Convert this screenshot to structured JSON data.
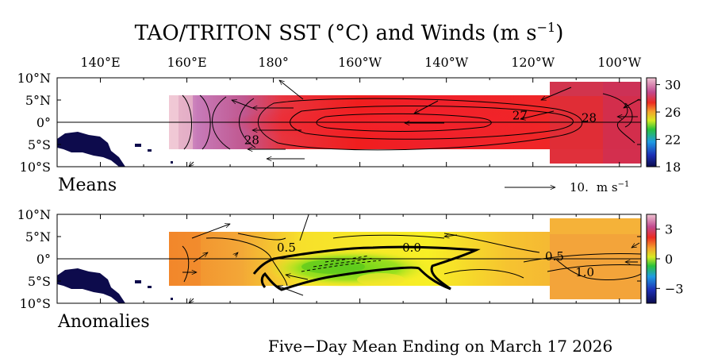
{
  "chart_data": {
    "type": "heatmap",
    "title": "TAO/TRITON SST (°C) and Winds (m s",
    "title_sup": "−1",
    "title_end": ")",
    "footer": "Five−Day Mean Ending on March 17 2026",
    "lon_ticks": [
      "140°E",
      "160°E",
      "180°",
      "160°W",
      "140°W",
      "120°W",
      "100°W"
    ],
    "lat_ticks": [
      "10°N",
      "5°N",
      "0°",
      "5°S",
      "10°S"
    ],
    "lon_range": [
      130,
      265
    ],
    "lat_range": [
      -10,
      10
    ],
    "wind_scale": {
      "value": "10.",
      "unit": "m s",
      "unit_sup": "−1"
    },
    "panels": [
      {
        "name": "means",
        "label": "Means",
        "variable": "SST",
        "units": "°C",
        "colorbar": {
          "ticks": [
            "30",
            "26",
            "22",
            "18"
          ],
          "range": [
            18,
            31
          ]
        },
        "contours": [
          {
            "label": "28",
            "lon": 175,
            "lat": -4
          },
          {
            "label": "27",
            "lon": 237,
            "lat": 1.5
          },
          {
            "label": "28",
            "lon": 253,
            "lat": 1
          }
        ],
        "grid_values_degC": {
          "lon": [
            160,
            170,
            180,
            190,
            200,
            210,
            220,
            230,
            240,
            250,
            260
          ],
          "rows": [
            {
              "lat": 5,
              "values": [
                29.4,
                29.3,
                29.0,
                28.4,
                27.8,
                27.6,
                27.6,
                27.5,
                27.7,
                28.6,
                28.8
              ]
            },
            {
              "lat": 2,
              "values": [
                29.6,
                29.5,
                29.2,
                28.7,
                28.0,
                27.5,
                27.2,
                27.1,
                27.3,
                28.4,
                28.6
              ]
            },
            {
              "lat": 0,
              "values": [
                29.8,
                29.6,
                29.3,
                28.8,
                27.9,
                27.2,
                26.8,
                26.9,
                27.1,
                28.2,
                28.4
              ]
            },
            {
              "lat": -2,
              "values": [
                29.7,
                29.5,
                29.2,
                28.8,
                28.1,
                27.6,
                27.3,
                27.2,
                27.4,
                28.3,
                28.5
              ]
            },
            {
              "lat": -5,
              "values": [
                29.5,
                29.4,
                29.1,
                28.6,
                28.2,
                27.9,
                27.8,
                27.6,
                27.7,
                28.5,
                28.7
              ]
            }
          ]
        }
      },
      {
        "name": "anomalies",
        "label": "Anomalies",
        "variable": "SST anomaly",
        "units": "°C",
        "colorbar": {
          "ticks": [
            "3",
            "0",
            "−3"
          ],
          "range": [
            -4.5,
            4.5
          ]
        },
        "contours": [
          {
            "label": "0.5",
            "lon": 183,
            "lat": 2.5
          },
          {
            "label": "0.0",
            "lon": 212,
            "lat": 2.5
          },
          {
            "label": "0.5",
            "lon": 245,
            "lat": 0.5
          },
          {
            "label": "1.0",
            "lon": 252,
            "lat": -3
          }
        ],
        "grid_values_degC": {
          "lon": [
            160,
            170,
            180,
            190,
            200,
            210,
            220,
            230,
            240,
            250,
            260
          ],
          "rows": [
            {
              "lat": 5,
              "values": [
                1.3,
                1.2,
                0.9,
                0.8,
                0.7,
                0.6,
                0.6,
                0.6,
                0.6,
                0.8,
                0.9
              ]
            },
            {
              "lat": 2,
              "values": [
                1.2,
                1.0,
                0.7,
                0.3,
                0.1,
                0.2,
                0.3,
                0.4,
                0.6,
                0.8,
                1.0
              ]
            },
            {
              "lat": 0,
              "values": [
                1.1,
                0.9,
                0.5,
                -0.4,
                -0.5,
                -0.4,
                -0.1,
                0.3,
                0.5,
                0.8,
                1.1
              ]
            },
            {
              "lat": -2,
              "values": [
                1.0,
                0.8,
                0.3,
                -0.6,
                -0.7,
                -0.4,
                0.0,
                0.3,
                0.6,
                1.0,
                1.2
              ]
            },
            {
              "lat": -5,
              "values": [
                1.0,
                0.8,
                0.5,
                0.1,
                -0.1,
                0.0,
                0.3,
                0.5,
                0.7,
                0.9,
                1.0
              ]
            }
          ]
        }
      }
    ]
  }
}
